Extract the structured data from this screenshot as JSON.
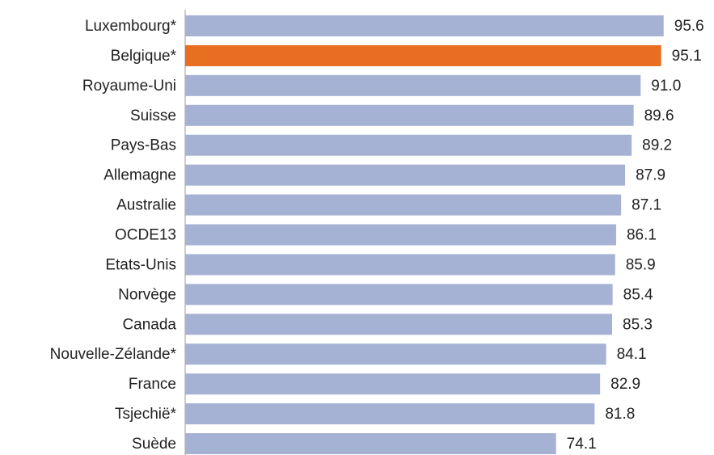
{
  "chart_data": {
    "type": "barh",
    "categories": [
      "Luxembourg*",
      "Belgique*",
      "Royaume-Uni",
      "Suisse",
      "Pays-Bas",
      "Allemagne",
      "Australie",
      "OCDE13",
      "Etats-Unis",
      "Norvège",
      "Canada",
      "Nouvelle-Zélande*",
      "France",
      "Tsjechië*",
      "Suède"
    ],
    "values": [
      95.6,
      95.1,
      91.0,
      89.6,
      89.2,
      87.9,
      87.1,
      86.1,
      85.9,
      85.4,
      85.3,
      84.1,
      82.9,
      81.8,
      74.1
    ],
    "value_labels": [
      "95.6",
      "95.1",
      "91.0",
      "89.6",
      "89.2",
      "87.9",
      "87.1",
      "86.1",
      "85.9",
      "85.4",
      "85.3",
      "84.1",
      "82.9",
      "81.8",
      "74.1"
    ],
    "colors": [
      "#a6b2d4",
      "#e86f21",
      "#a6b2d4",
      "#a6b2d4",
      "#a6b2d4",
      "#a6b2d4",
      "#a6b2d4",
      "#a6b2d4",
      "#a6b2d4",
      "#a6b2d4",
      "#a6b2d4",
      "#a6b2d4",
      "#a6b2d4",
      "#a6b2d4",
      "#a6b2d4"
    ],
    "xlim": [
      0,
      100
    ]
  }
}
